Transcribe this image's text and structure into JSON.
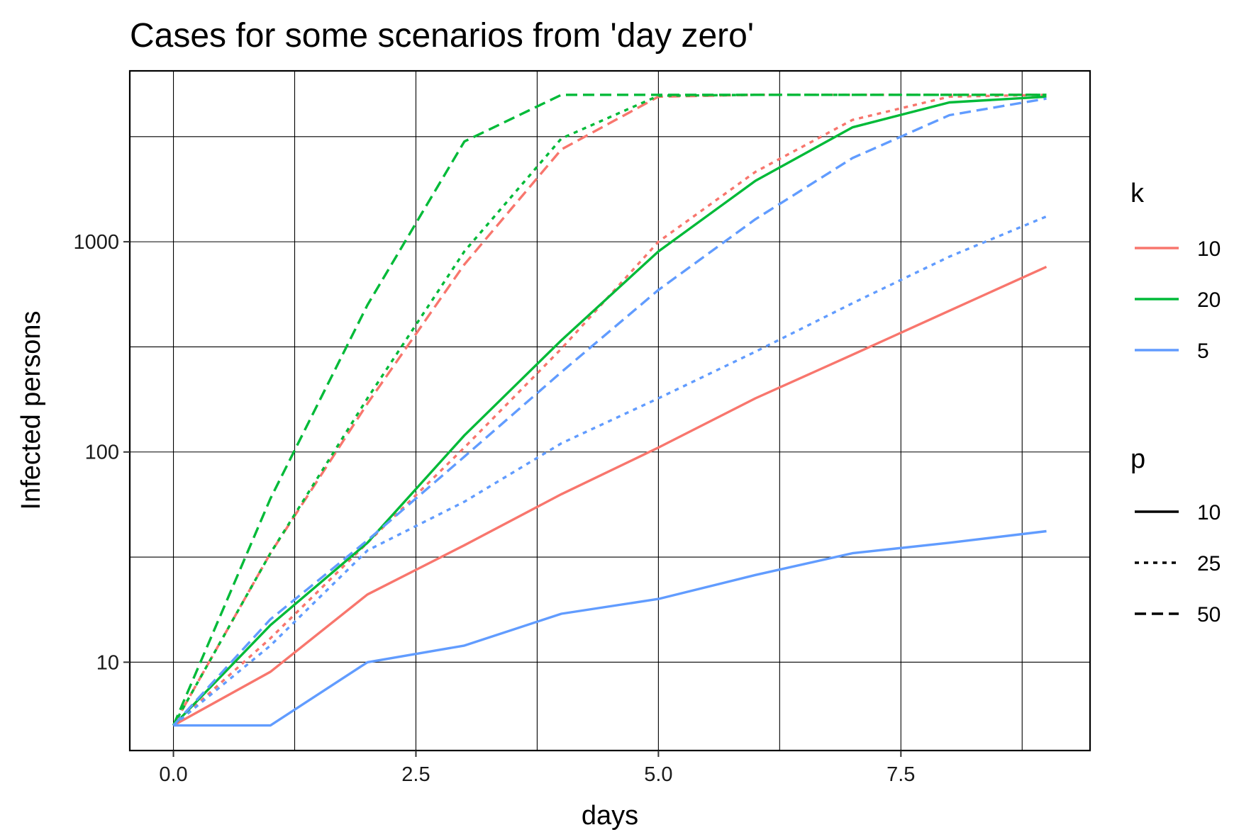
{
  "chart_data": {
    "type": "line",
    "title": "Cases for some scenarios from 'day zero'",
    "xlabel": "days",
    "ylabel": "Infected persons",
    "xlim": [
      -0.45,
      9.45
    ],
    "ylim": [
      3.8,
      6500
    ],
    "y_scale": "log10",
    "x_ticks": [
      0,
      2.5,
      5,
      7.5
    ],
    "x_tick_labels": [
      "0.0",
      "2.5",
      "5.0",
      "7.5"
    ],
    "y_ticks": [
      10,
      100,
      1000
    ],
    "y_tick_labels": [
      "10",
      "100",
      "1000"
    ],
    "grid": true,
    "legend_position": "right",
    "legend": {
      "color": {
        "title": "k",
        "entries": [
          {
            "label": "10",
            "color": "#F8766D"
          },
          {
            "label": "20",
            "color": "#00BA38"
          },
          {
            "label": "5",
            "color": "#619CFF"
          }
        ]
      },
      "linetype": {
        "title": "p",
        "entries": [
          {
            "label": "10",
            "dash": "solid"
          },
          {
            "label": "25",
            "dash": "dotted"
          },
          {
            "label": "50",
            "dash": "dashed"
          }
        ]
      }
    },
    "x": [
      0,
      1,
      2,
      3,
      4,
      5,
      6,
      7,
      8,
      9
    ],
    "series": [
      {
        "k": "10",
        "p": "10",
        "color": "#F8766D",
        "dash": "solid",
        "values": [
          5,
          9,
          21,
          36,
          63,
          105,
          180,
          290,
          470,
          760
        ]
      },
      {
        "k": "10",
        "p": "25",
        "color": "#F8766D",
        "dash": "dotted",
        "values": [
          5,
          13,
          37,
          105,
          310,
          1000,
          2150,
          3800,
          4900,
          5000
        ]
      },
      {
        "k": "10",
        "p": "50",
        "color": "#F8766D",
        "dash": "dashed",
        "values": [
          5,
          33,
          170,
          780,
          2750,
          4900,
          5000,
          5000,
          5000,
          5000
        ]
      },
      {
        "k": "20",
        "p": "10",
        "color": "#00BA38",
        "dash": "solid",
        "values": [
          5,
          15,
          37,
          120,
          340,
          900,
          1950,
          3500,
          4600,
          4900
        ]
      },
      {
        "k": "20",
        "p": "25",
        "color": "#00BA38",
        "dash": "dotted",
        "values": [
          5,
          33,
          180,
          900,
          3100,
          4950,
          5000,
          5000,
          5000,
          5000
        ]
      },
      {
        "k": "20",
        "p": "50",
        "color": "#00BA38",
        "dash": "dashed",
        "values": [
          5,
          60,
          500,
          3000,
          5000,
          5000,
          5000,
          5000,
          5000,
          5000
        ]
      },
      {
        "k": "5",
        "p": "10",
        "color": "#619CFF",
        "dash": "solid",
        "values": [
          5,
          5,
          10,
          12,
          17,
          20,
          26,
          33,
          37,
          42
        ]
      },
      {
        "k": "5",
        "p": "25",
        "color": "#619CFF",
        "dash": "dotted",
        "values": [
          5,
          12,
          34,
          58,
          110,
          180,
          300,
          510,
          850,
          1320
        ]
      },
      {
        "k": "5",
        "p": "50",
        "color": "#619CFF",
        "dash": "dashed",
        "values": [
          5,
          16,
          38,
          95,
          240,
          590,
          1280,
          2500,
          4000,
          4800
        ]
      }
    ]
  }
}
